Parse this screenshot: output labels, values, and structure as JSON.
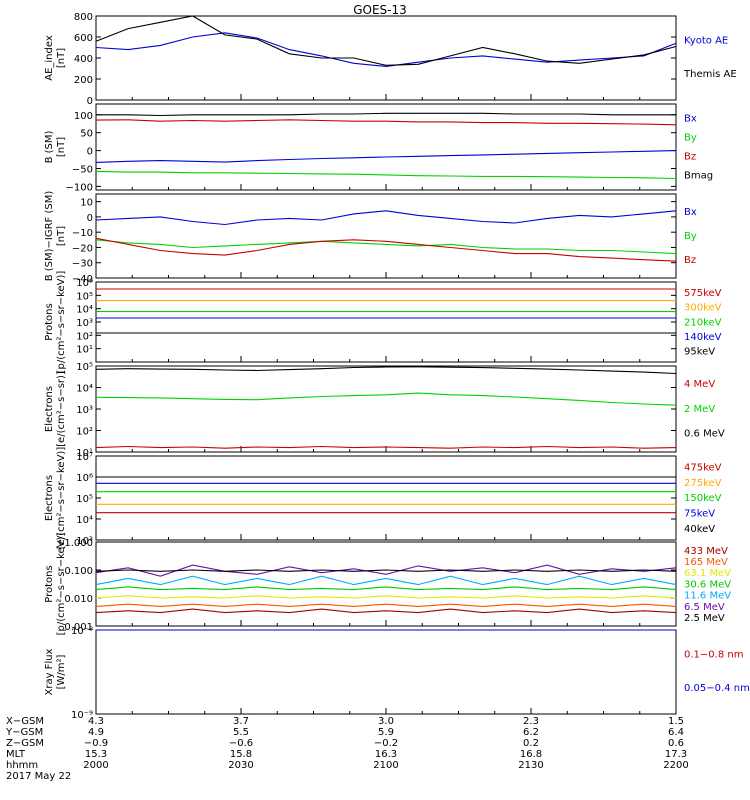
{
  "title": "GOES-13",
  "colors": {
    "black": "#000000",
    "blue": "#0000d8",
    "red": "#c80000",
    "green": "#00d200",
    "orange": "#ffaa00",
    "cyan": "#00aaff",
    "darkred": "#a00000",
    "yellow": "#e6e600",
    "purple": "#6a0db0",
    "lime": "#00c800"
  },
  "chart_data": [
    {
      "id": "ae",
      "type": "line",
      "ylabel": "AE_index\n[nT]",
      "ylim": [
        0,
        800
      ],
      "ticks": [
        "0",
        "200",
        "400",
        "600",
        "800"
      ],
      "tick_values": [
        0,
        200,
        400,
        600,
        800
      ],
      "series": [
        {
          "name": "Kyoto AE",
          "color": "#0000d8",
          "values": [
            500,
            480,
            520,
            600,
            640,
            590,
            480,
            420,
            350,
            320,
            360,
            400,
            420,
            390,
            360,
            380,
            400,
            420,
            540
          ]
        },
        {
          "name": "Themis AE",
          "color": "#000000",
          "values": [
            560,
            680,
            740,
            800,
            620,
            580,
            440,
            400,
            400,
            330,
            340,
            420,
            500,
            440,
            370,
            350,
            390,
            430,
            510
          ]
        }
      ]
    },
    {
      "id": "b_sm",
      "type": "line",
      "ylabel": "B (SM)\n[nT]",
      "ylim": [
        -110,
        130
      ],
      "ticks": [
        "−100",
        "−50",
        "0",
        "50",
        "100"
      ],
      "tick_values": [
        -100,
        -50,
        0,
        50,
        100
      ],
      "series": [
        {
          "name": "Bx",
          "color": "#0000d8",
          "values": [
            -33,
            -30,
            -28,
            -30,
            -32,
            -28,
            -25,
            -22,
            -20,
            -18,
            -16,
            -14,
            -12,
            -10,
            -8,
            -6,
            -4,
            -2,
            0
          ]
        },
        {
          "name": "By",
          "color": "#00d200",
          "values": [
            -58,
            -60,
            -60,
            -62,
            -62,
            -63,
            -64,
            -65,
            -66,
            -68,
            -70,
            -71,
            -72,
            -72,
            -73,
            -74,
            -75,
            -76,
            -78
          ]
        },
        {
          "name": "Bz",
          "color": "#c80000",
          "values": [
            85,
            86,
            82,
            84,
            82,
            84,
            86,
            84,
            82,
            82,
            80,
            80,
            78,
            78,
            76,
            76,
            75,
            74,
            72
          ]
        },
        {
          "name": "Bmag",
          "color": "#000000",
          "values": [
            100,
            100,
            98,
            100,
            100,
            100,
            100,
            102,
            102,
            104,
            104,
            104,
            104,
            102,
            102,
            102,
            100,
            100,
            100
          ]
        }
      ]
    },
    {
      "id": "b_igrf",
      "type": "line",
      "ylabel": "B (SM)−IGRF (SM)\n[nT]",
      "ylim": [
        -40,
        15
      ],
      "ticks": [
        "−40",
        "−30",
        "−20",
        "−10",
        "0",
        "10"
      ],
      "tick_values": [
        -40,
        -30,
        -20,
        -10,
        0,
        10
      ],
      "series": [
        {
          "name": "Bx",
          "color": "#0000d8",
          "values": [
            -2,
            -1,
            0,
            -3,
            -5,
            -2,
            -1,
            -2,
            2,
            4,
            1,
            -1,
            -3,
            -4,
            -1,
            1,
            0,
            2,
            4
          ]
        },
        {
          "name": "By",
          "color": "#00d200",
          "values": [
            -15,
            -17,
            -18,
            -20,
            -19,
            -18,
            -17,
            -16,
            -17,
            -18,
            -19,
            -18,
            -20,
            -21,
            -21,
            -22,
            -22,
            -23,
            -24
          ]
        },
        {
          "name": "Bz",
          "color": "#c80000",
          "values": [
            -14,
            -18,
            -22,
            -24,
            -25,
            -22,
            -18,
            -16,
            -15,
            -16,
            -18,
            -20,
            -22,
            -24,
            -24,
            -26,
            -27,
            -28,
            -29
          ]
        }
      ]
    },
    {
      "id": "protons_low",
      "type": "line",
      "log": true,
      "ylabel": "Protons\n[p/(cm²−s−sr−keV)]",
      "ylim": [
        1,
        1000000
      ],
      "ticks": [
        "10¹",
        "10²",
        "10³",
        "10⁴",
        "10⁵",
        "10⁶"
      ],
      "tick_values": [
        10,
        100,
        1000,
        10000,
        100000,
        1000000
      ],
      "series": [
        {
          "name": "575keV",
          "color": "#c80000",
          "values": [
            300000,
            300000,
            300000,
            300000,
            300000,
            300000,
            300000,
            300000,
            300000,
            300000,
            300000,
            300000,
            300000,
            300000,
            300000,
            300000,
            300000,
            300000,
            300000
          ]
        },
        {
          "name": "300keV",
          "color": "#ffaa00",
          "values": [
            40000,
            40000,
            40000,
            40000,
            40000,
            40000,
            40000,
            40000,
            40000,
            40000,
            40000,
            40000,
            40000,
            40000,
            40000,
            40000,
            40000,
            40000,
            40000
          ]
        },
        {
          "name": "210keV",
          "color": "#00d200",
          "values": [
            6000,
            6000,
            6000,
            6000,
            6000,
            6000,
            6000,
            6000,
            6000,
            6000,
            6000,
            6000,
            6000,
            6000,
            6000,
            6000,
            6000,
            6000,
            6000
          ]
        },
        {
          "name": "140keV",
          "color": "#0000d8",
          "values": [
            2000,
            2000,
            2000,
            2000,
            2000,
            2000,
            2000,
            2000,
            2000,
            2000,
            2000,
            2000,
            2000,
            2000,
            2000,
            2000,
            2000,
            2000,
            2000
          ]
        },
        {
          "name": "95keV",
          "color": "#000000",
          "values": [
            150,
            150,
            150,
            150,
            150,
            150,
            150,
            150,
            150,
            150,
            150,
            150,
            150,
            150,
            150,
            150,
            150,
            150,
            150
          ]
        }
      ]
    },
    {
      "id": "electrons_high",
      "type": "line",
      "log": true,
      "ylabel": "Electrons\n[e/(cm²−s−sr)]",
      "ylim": [
        10,
        100000
      ],
      "ticks": [
        "10¹",
        "10²",
        "10³",
        "10⁴",
        "10⁵"
      ],
      "tick_values": [
        10,
        100,
        1000,
        10000,
        100000
      ],
      "series": [
        {
          "name": "4 MeV",
          "color": "#c80000",
          "values": [
            16,
            18,
            16,
            17,
            15,
            17,
            16,
            18,
            16,
            17,
            16,
            15,
            17,
            16,
            18,
            16,
            17,
            15,
            16
          ]
        },
        {
          "name": "2 MeV",
          "color": "#00d200",
          "values": [
            3500,
            3400,
            3300,
            3000,
            2800,
            2700,
            3300,
            3800,
            4200,
            4600,
            5500,
            4600,
            4200,
            3600,
            3000,
            2500,
            2000,
            1700,
            1500
          ]
        },
        {
          "name": "0.6 MeV",
          "color": "#000000",
          "values": [
            70000,
            75000,
            72000,
            70000,
            65000,
            62000,
            68000,
            75000,
            85000,
            90000,
            92000,
            88000,
            84000,
            78000,
            72000,
            65000,
            58000,
            52000,
            45000
          ]
        }
      ]
    },
    {
      "id": "electrons_low",
      "type": "line",
      "log": true,
      "ylabel": "Electrons\n[e/(cm²−s−sr−keV)]",
      "ylim": [
        1000,
        10000000
      ],
      "ticks": [
        "10³",
        "10⁴",
        "10⁵",
        "10⁶",
        "10⁷"
      ],
      "tick_values": [
        1000,
        10000,
        100000,
        1000000,
        10000000
      ],
      "series": [
        {
          "name": "475keV",
          "color": "#c80000",
          "values": [
            20000,
            20000,
            20000,
            20000,
            20000,
            20000,
            20000,
            20000,
            20000,
            20000,
            20000,
            20000,
            20000,
            20000,
            20000,
            20000,
            20000,
            20000,
            20000
          ]
        },
        {
          "name": "275keV",
          "color": "#ffaa00",
          "values": [
            50000,
            50000,
            50000,
            50000,
            50000,
            50000,
            50000,
            50000,
            50000,
            50000,
            50000,
            50000,
            50000,
            50000,
            50000,
            50000,
            50000,
            50000,
            50000
          ]
        },
        {
          "name": "150keV",
          "color": "#00d200",
          "values": [
            200000,
            200000,
            200000,
            200000,
            200000,
            200000,
            200000,
            200000,
            200000,
            200000,
            200000,
            200000,
            200000,
            200000,
            200000,
            200000,
            200000,
            200000,
            200000
          ]
        },
        {
          "name": "75keV",
          "color": "#0000d8",
          "values": [
            500000,
            500000,
            500000,
            500000,
            500000,
            500000,
            500000,
            500000,
            500000,
            500000,
            500000,
            500000,
            500000,
            500000,
            500000,
            500000,
            500000,
            500000,
            500000
          ]
        },
        {
          "name": "40keV",
          "color": "#000000",
          "values": [
            1000000,
            1000000,
            1000000,
            1000000,
            1000000,
            1000000,
            1000000,
            1000000,
            1000000,
            1000000,
            1000000,
            1000000,
            1000000,
            1000000,
            1000000,
            1000000,
            1000000,
            1000000,
            1000000
          ]
        }
      ]
    },
    {
      "id": "protons_high",
      "type": "line",
      "log": true,
      "ylabel": "Protons\n[p/(cm²−s−sr−keV)]",
      "ylim": [
        0.001,
        1.0
      ],
      "ticks": [
        "0.001",
        "0.010",
        "0.100",
        "1.000"
      ],
      "tick_values": [
        0.001,
        0.01,
        0.1,
        1.0
      ],
      "series": [
        {
          "name": "433 MeV",
          "color": "#a00000",
          "values": [
            0.003,
            0.0035,
            0.003,
            0.004,
            0.003,
            0.0035,
            0.003,
            0.004,
            0.003,
            0.0035,
            0.003,
            0.004,
            0.003,
            0.0035,
            0.003,
            0.004,
            0.003,
            0.0035,
            0.003
          ]
        },
        {
          "name": "165 MeV",
          "color": "#ff5500",
          "values": [
            0.005,
            0.006,
            0.005,
            0.006,
            0.005,
            0.006,
            0.005,
            0.006,
            0.005,
            0.006,
            0.005,
            0.006,
            0.005,
            0.006,
            0.005,
            0.006,
            0.005,
            0.006,
            0.005
          ]
        },
        {
          "name": "63.1 MeV",
          "color": "#e6e600",
          "values": [
            0.01,
            0.012,
            0.01,
            0.011,
            0.01,
            0.012,
            0.01,
            0.011,
            0.01,
            0.012,
            0.01,
            0.011,
            0.01,
            0.012,
            0.01,
            0.011,
            0.01,
            0.012,
            0.01
          ]
        },
        {
          "name": "30.6 MeV",
          "color": "#00c800",
          "values": [
            0.02,
            0.025,
            0.02,
            0.022,
            0.02,
            0.025,
            0.02,
            0.022,
            0.02,
            0.025,
            0.02,
            0.022,
            0.02,
            0.025,
            0.02,
            0.022,
            0.02,
            0.025,
            0.02
          ]
        },
        {
          "name": "11.6 MeV",
          "color": "#00aaff",
          "values": [
            0.03,
            0.05,
            0.03,
            0.06,
            0.03,
            0.05,
            0.03,
            0.06,
            0.03,
            0.05,
            0.03,
            0.06,
            0.03,
            0.05,
            0.03,
            0.06,
            0.03,
            0.05,
            0.03
          ]
        },
        {
          "name": "6.5 MeV",
          "color": "#6a0db0",
          "values": [
            0.08,
            0.12,
            0.06,
            0.15,
            0.09,
            0.07,
            0.13,
            0.08,
            0.11,
            0.07,
            0.14,
            0.09,
            0.12,
            0.08,
            0.15,
            0.07,
            0.11,
            0.09,
            0.12
          ]
        },
        {
          "name": "2.5 MeV",
          "color": "#000000",
          "values": [
            0.09,
            0.1,
            0.09,
            0.1,
            0.09,
            0.1,
            0.09,
            0.1,
            0.09,
            0.1,
            0.09,
            0.1,
            0.09,
            0.1,
            0.09,
            0.1,
            0.09,
            0.1,
            0.09
          ]
        }
      ]
    },
    {
      "id": "xray",
      "type": "line",
      "log": true,
      "ylabel": "Xray Flux\n[W/m²]",
      "ylim": [
        1e-09,
        1e-08
      ],
      "ticks": [
        "10⁻⁹",
        "10⁻⁸",
        "10⁻⁷",
        "10⁻⁶"
      ],
      "tick_values": [
        1e-09,
        1e-08,
        1e-07,
        1e-06
      ],
      "series": [
        {
          "name": "0.1−0.8 nm",
          "color": "#c80000",
          "values": [
            5e-08,
            5.5e-08,
            5e-08,
            5.5e-08,
            5e-08,
            5.5e-08,
            5e-08,
            5.5e-08,
            5e-08,
            5.5e-08,
            5e-08,
            5.5e-08,
            5e-08,
            5.5e-08,
            5e-08,
            5.5e-08,
            5e-08,
            5.5e-08,
            5e-08
          ]
        },
        {
          "name": "0.05−0.4 nm",
          "color": "#0000d8",
          "values": [
            1e-08,
            1.2e-08,
            1e-08,
            1.2e-08,
            1e-08,
            1.2e-08,
            1e-08,
            1.2e-08,
            1e-08,
            1.2e-08,
            1e-08,
            1.2e-08,
            1e-08,
            1.2e-08,
            1e-08,
            1.2e-08,
            1e-08,
            1.2e-08,
            1e-08
          ]
        }
      ]
    }
  ],
  "x_axis": {
    "row_labels": [
      "X−GSM",
      "Y−GSM",
      "Z−GSM",
      "MLT",
      "hhmm"
    ],
    "columns": [
      [
        "4.3",
        "4.9",
        "−0.9",
        "15.3",
        "2000"
      ],
      [
        "3.7",
        "5.5",
        "−0.6",
        "15.8",
        "2030"
      ],
      [
        "3.0",
        "5.9",
        "−0.2",
        "16.3",
        "2100"
      ],
      [
        "2.3",
        "6.2",
        "0.2",
        "16.8",
        "2130"
      ],
      [
        "1.5",
        "6.4",
        "0.6",
        "17.3",
        "2200"
      ]
    ],
    "date": "2017 May 22"
  }
}
